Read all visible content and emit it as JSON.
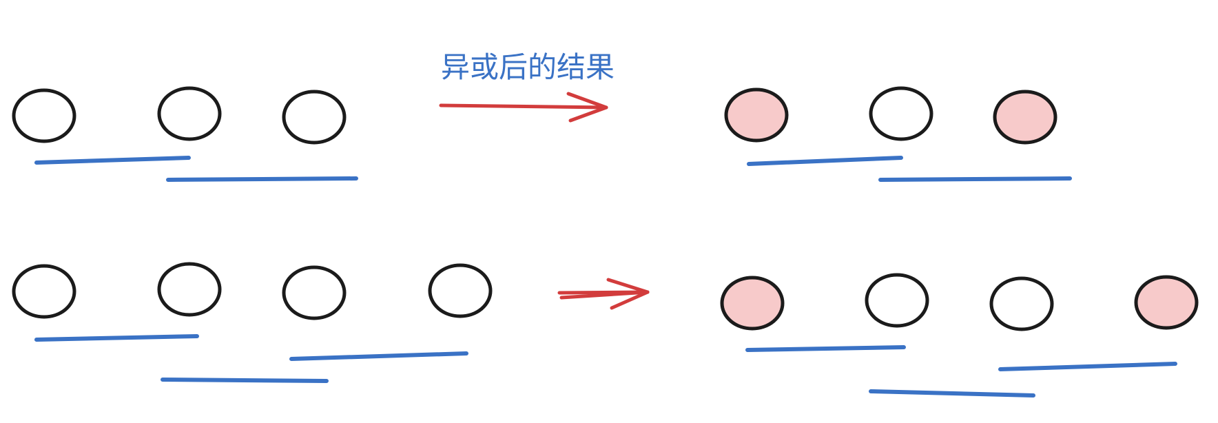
{
  "caption": "异或后的结果",
  "colors": {
    "caption": "#3a72c5",
    "outline": "#1b1b1b",
    "blue_line": "#3a72c5",
    "red_arrow": "#d23c3c",
    "highlight_fill": "#f7caca"
  },
  "diagram": {
    "rows": [
      {
        "name": "row-1",
        "before": {
          "circles": [
            {
              "filled": false
            },
            {
              "filled": false
            },
            {
              "filled": false
            }
          ],
          "spans": [
            {
              "from": 1,
              "to": 2
            },
            {
              "from": 2,
              "to": 3
            }
          ]
        },
        "after": {
          "circles": [
            {
              "filled": true
            },
            {
              "filled": false
            },
            {
              "filled": true
            }
          ],
          "spans": [
            {
              "from": 1,
              "to": 2
            },
            {
              "from": 2,
              "to": 3
            }
          ]
        }
      },
      {
        "name": "row-2",
        "before": {
          "circles": [
            {
              "filled": false
            },
            {
              "filled": false
            },
            {
              "filled": false
            },
            {
              "filled": false
            }
          ],
          "spans": [
            {
              "from": 1,
              "to": 2
            },
            {
              "from": 2,
              "to": 3
            },
            {
              "from": 3,
              "to": 4
            }
          ]
        },
        "after": {
          "circles": [
            {
              "filled": true
            },
            {
              "filled": false
            },
            {
              "filled": false
            },
            {
              "filled": true
            }
          ],
          "spans": [
            {
              "from": 1,
              "to": 2
            },
            {
              "from": 2,
              "to": 3
            },
            {
              "from": 3,
              "to": 4
            }
          ]
        }
      }
    ]
  }
}
